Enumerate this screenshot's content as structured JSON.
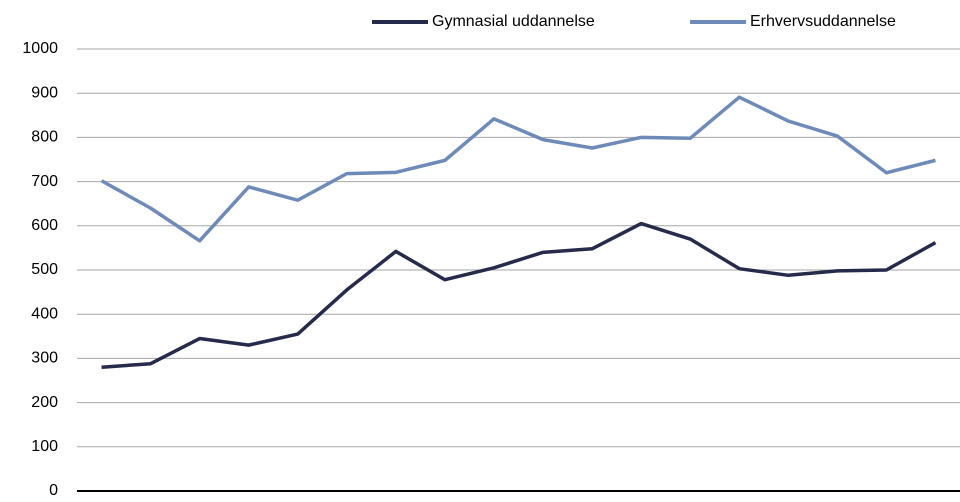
{
  "chart_data": {
    "type": "line",
    "categories": [
      null,
      null,
      null,
      null,
      null,
      null,
      null,
      null,
      null,
      null,
      null,
      null,
      null,
      null,
      null,
      null,
      null,
      null
    ],
    "series": [
      {
        "name": "Gymnasial uddannelse",
        "color": "#262b4c",
        "values": [
          280,
          288,
          345,
          330,
          355,
          455,
          542,
          478,
          505,
          540,
          548,
          605,
          570,
          503,
          488,
          498,
          500,
          562
        ]
      },
      {
        "name": "Erhvervsuddannelse",
        "color": "#6e8ab8",
        "values": [
          702,
          640,
          566,
          688,
          658,
          718,
          721,
          748,
          842,
          795,
          776,
          800,
          798,
          891,
          837,
          803,
          720,
          748
        ]
      }
    ],
    "ylim": [
      0,
      1000
    ],
    "yticks": [
      0,
      100,
      200,
      300,
      400,
      500,
      600,
      700,
      800,
      900,
      1000
    ],
    "grid": true,
    "legend": "top-right"
  }
}
